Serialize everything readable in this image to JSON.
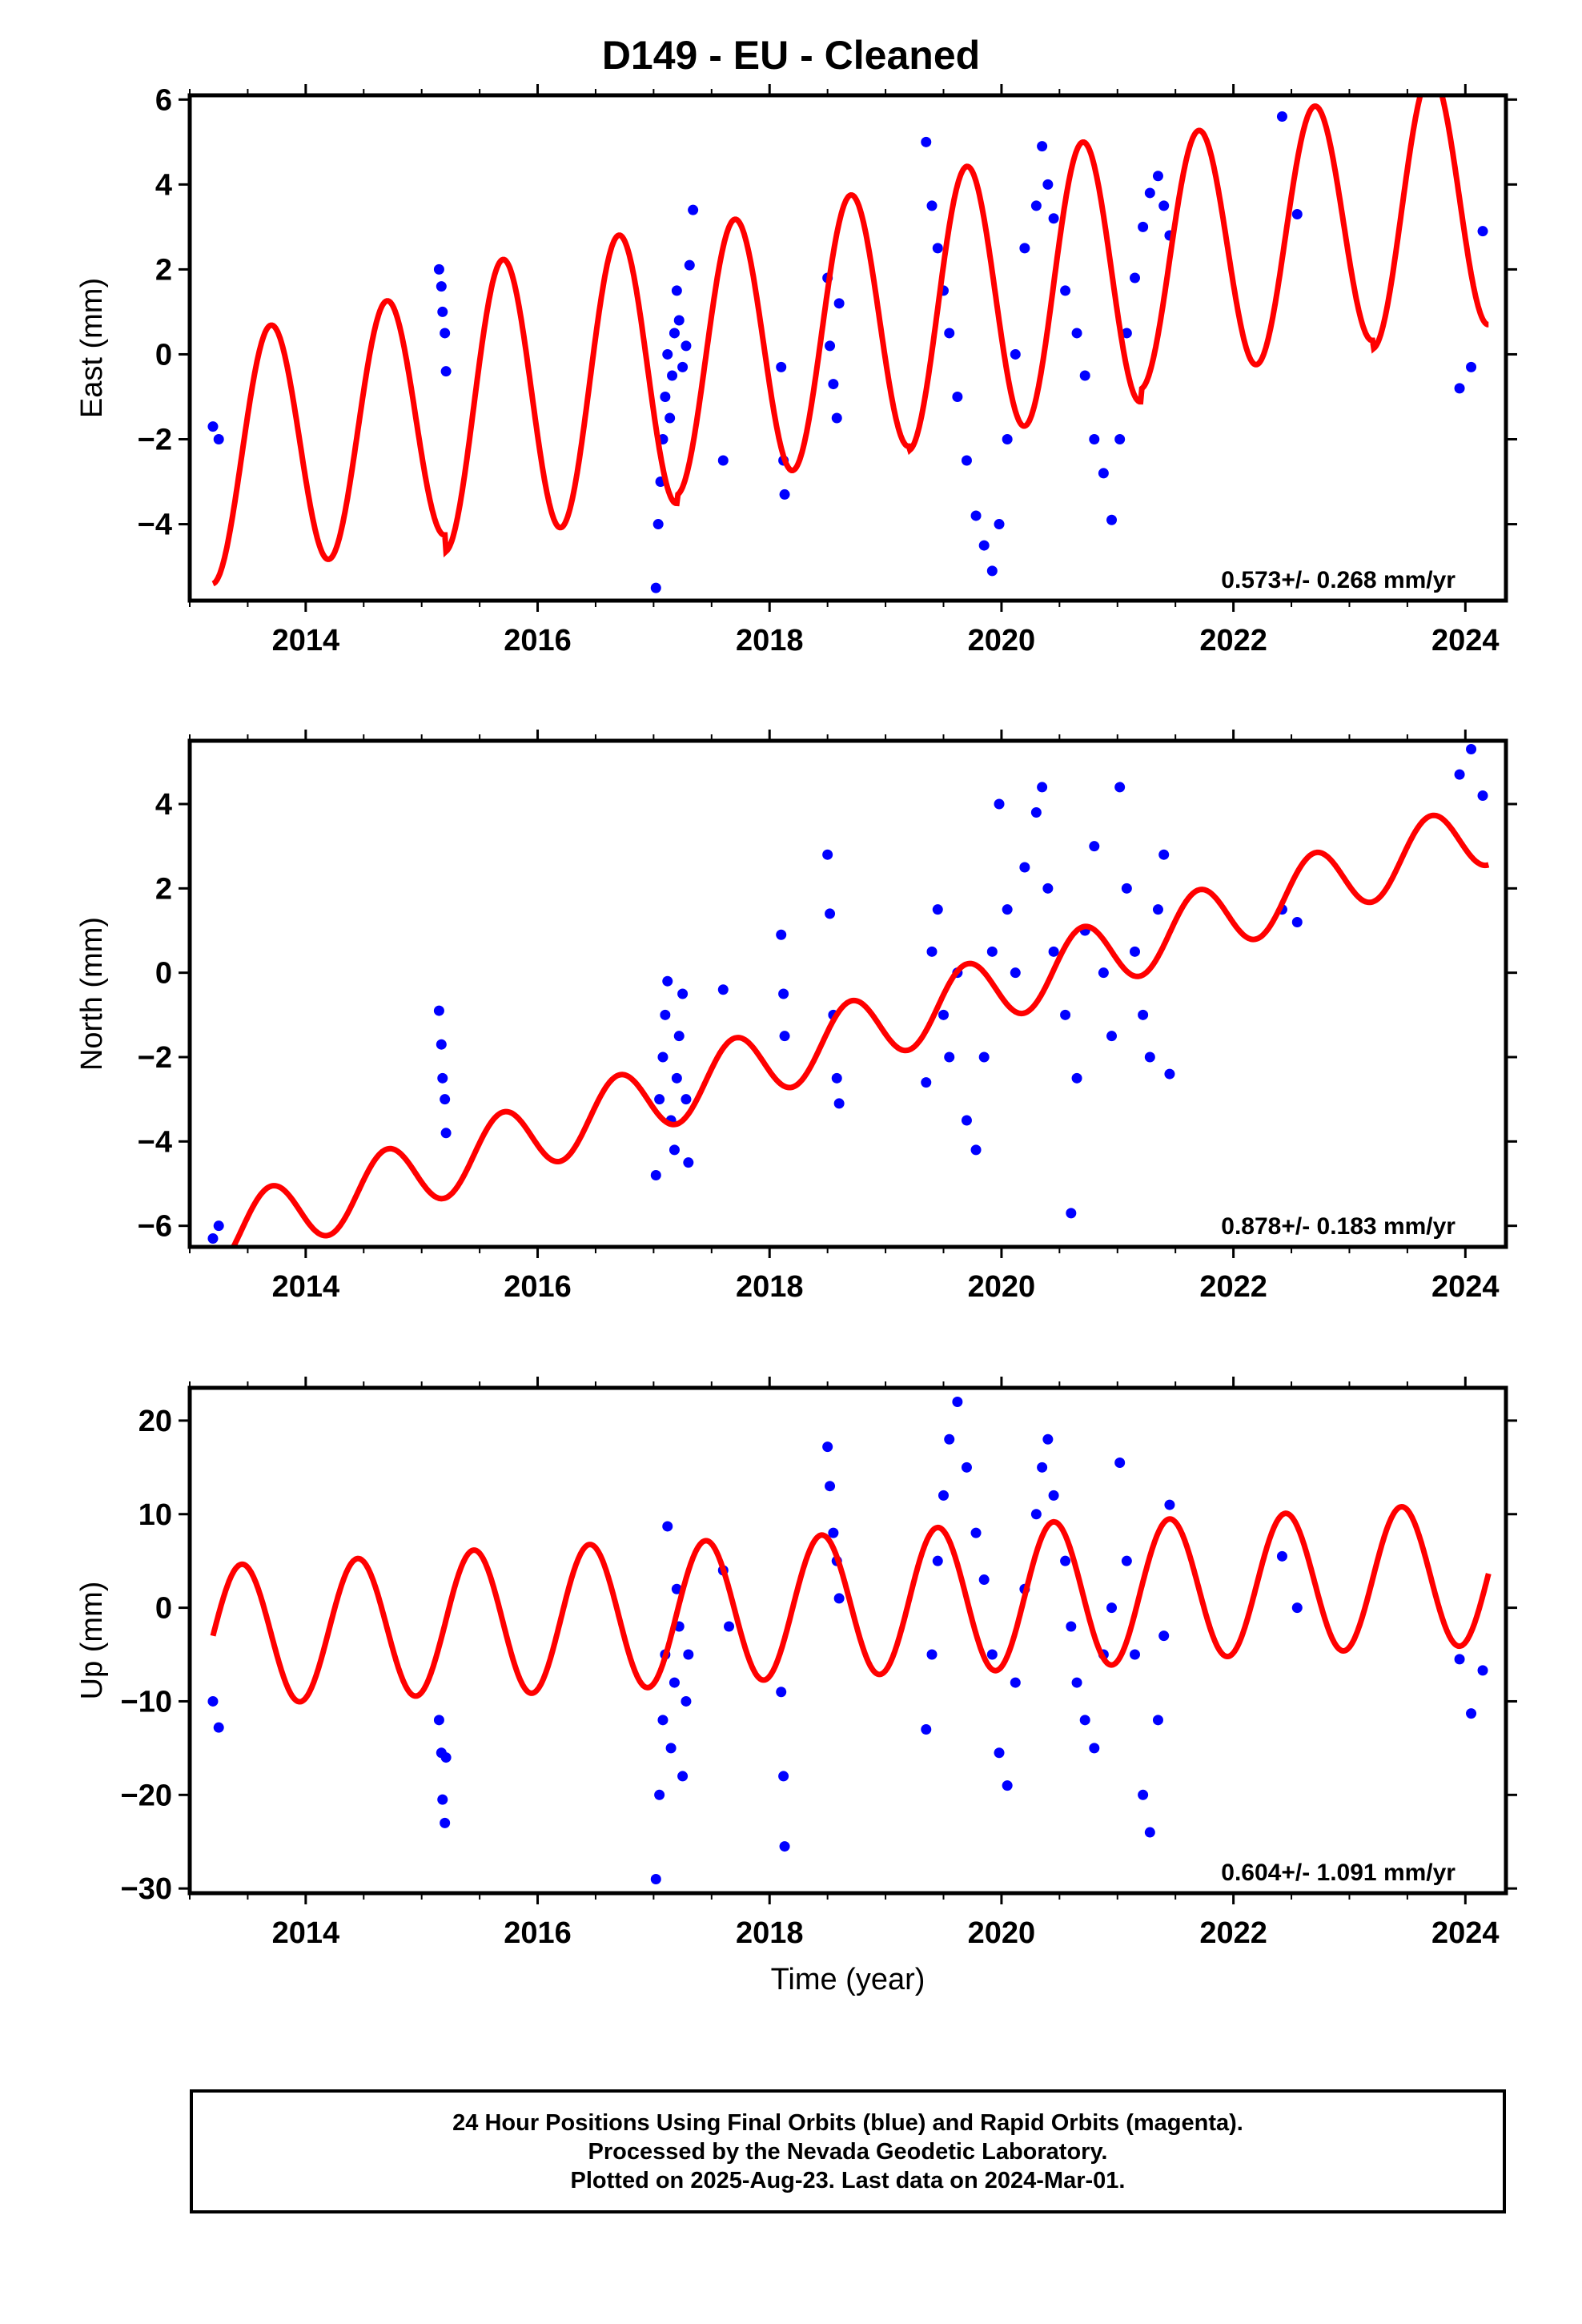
{
  "title": "D149  - EU - Cleaned",
  "caption": [
    "24 Hour Positions Using Final Orbits (blue) and Rapid Orbits (magenta).",
    "Processed by the Nevada Geodetic Laboratory.",
    "Plotted on 2025-Aug-23. Last data on 2024-Mar-01."
  ],
  "colors": {
    "final_orbits": "#0000ff",
    "model": "#ff0000",
    "axes": "#000000"
  },
  "chart_data": [
    {
      "type": "scatter",
      "ylabel": "East (mm)",
      "xlabel": "",
      "xlim": [
        2013.0,
        2024.35
      ],
      "ylim": [
        -5.8,
        6.1
      ],
      "xticks": [
        2014,
        2016,
        2018,
        2020,
        2022,
        2024
      ],
      "yticks": [
        -4,
        -2,
        0,
        2,
        4,
        6
      ],
      "ytick_labels": [
        "−4",
        "−2",
        "0",
        "2",
        "4",
        "6"
      ],
      "rate_label": "0.573+/- 0.268 mm/yr",
      "series": [
        {
          "kind": "points",
          "color": "#0000ff",
          "x": [
            2013.2,
            2013.25,
            2015.15,
            2015.17,
            2015.18,
            2015.2,
            2015.21,
            2017.02,
            2017.04,
            2017.06,
            2017.08,
            2017.1,
            2017.12,
            2017.14,
            2017.16,
            2017.18,
            2017.2,
            2017.22,
            2017.25,
            2017.28,
            2017.31,
            2017.34,
            2017.6,
            2018.1,
            2018.12,
            2018.13,
            2018.5,
            2018.52,
            2018.55,
            2018.58,
            2018.6,
            2019.35,
            2019.4,
            2019.45,
            2019.5,
            2019.55,
            2019.62,
            2019.7,
            2019.78,
            2019.85,
            2019.92,
            2019.98,
            2020.05,
            2020.12,
            2020.2,
            2020.3,
            2020.35,
            2020.4,
            2020.45,
            2020.55,
            2020.65,
            2020.72,
            2020.8,
            2020.88,
            2020.95,
            2021.02,
            2021.08,
            2021.15,
            2021.22,
            2021.28,
            2021.35,
            2021.4,
            2021.45,
            2022.42,
            2022.55,
            2023.95,
            2024.05,
            2024.15
          ],
          "y": [
            -1.7,
            -2.0,
            2.0,
            1.6,
            1.0,
            0.5,
            -0.4,
            -5.5,
            -4.0,
            -3.0,
            -2.0,
            -1.0,
            0.0,
            -1.5,
            -0.5,
            0.5,
            1.5,
            0.8,
            -0.3,
            0.2,
            2.1,
            3.4,
            -2.5,
            -0.3,
            -2.5,
            -3.3,
            1.8,
            0.2,
            -0.7,
            -1.5,
            1.2,
            5.0,
            3.5,
            2.5,
            1.5,
            0.5,
            -1.0,
            -2.5,
            -3.8,
            -4.5,
            -5.1,
            -4.0,
            -2.0,
            0.0,
            2.5,
            3.5,
            4.9,
            4.0,
            3.2,
            1.5,
            0.5,
            -0.5,
            -2.0,
            -2.8,
            -3.9,
            -2.0,
            0.5,
            1.8,
            3.0,
            3.8,
            4.2,
            3.5,
            2.8,
            5.6,
            3.3,
            -0.8,
            -0.3,
            2.9
          ]
        },
        {
          "kind": "line",
          "color": "#ff0000",
          "model": {
            "t0": 2013.2,
            "offset": -2.5,
            "rate": 0.573,
            "amp": [
              2.9,
              3.3,
              3.1,
              3.2,
              2.9,
              3.1
            ],
            "phase_year": 2013.45
          }
        }
      ]
    },
    {
      "type": "scatter",
      "ylabel": "North (mm)",
      "xlabel": "",
      "xlim": [
        2013.0,
        2024.35
      ],
      "ylim": [
        -6.5,
        5.5
      ],
      "xticks": [
        2014,
        2016,
        2018,
        2020,
        2022,
        2024
      ],
      "yticks": [
        -6,
        -4,
        -2,
        0,
        2,
        4
      ],
      "ytick_labels": [
        "−6",
        "−4",
        "−2",
        "0",
        "2",
        "4"
      ],
      "rate_label": "0.878+/- 0.183 mm/yr",
      "series": [
        {
          "kind": "points",
          "color": "#0000ff",
          "x": [
            2013.2,
            2013.25,
            2015.15,
            2015.17,
            2015.18,
            2015.2,
            2015.21,
            2017.02,
            2017.05,
            2017.08,
            2017.1,
            2017.12,
            2017.15,
            2017.18,
            2017.2,
            2017.22,
            2017.25,
            2017.28,
            2017.3,
            2017.6,
            2018.1,
            2018.12,
            2018.13,
            2018.5,
            2018.52,
            2018.55,
            2018.58,
            2018.6,
            2019.35,
            2019.4,
            2019.45,
            2019.5,
            2019.55,
            2019.62,
            2019.7,
            2019.78,
            2019.85,
            2019.92,
            2019.98,
            2020.05,
            2020.12,
            2020.2,
            2020.3,
            2020.35,
            2020.4,
            2020.45,
            2020.55,
            2020.6,
            2020.65,
            2020.72,
            2020.8,
            2020.88,
            2020.95,
            2021.02,
            2021.08,
            2021.15,
            2021.22,
            2021.28,
            2021.35,
            2021.4,
            2021.45,
            2022.42,
            2022.55,
            2023.95,
            2024.05,
            2024.15
          ],
          "y": [
            -6.3,
            -6.0,
            -0.9,
            -1.7,
            -2.5,
            -3.0,
            -3.8,
            -4.8,
            -3.0,
            -2.0,
            -1.0,
            -0.2,
            -3.5,
            -4.2,
            -2.5,
            -1.5,
            -0.5,
            -3.0,
            -4.5,
            -0.4,
            0.9,
            -0.5,
            -1.5,
            2.8,
            1.4,
            -1.0,
            -2.5,
            -3.1,
            -2.6,
            0.5,
            1.5,
            -1.0,
            -2.0,
            0.0,
            -3.5,
            -4.2,
            -2.0,
            0.5,
            4.0,
            1.5,
            0.0,
            2.5,
            3.8,
            4.4,
            2.0,
            0.5,
            -1.0,
            -5.7,
            -2.5,
            1.0,
            3.0,
            0.0,
            -1.5,
            4.4,
            2.0,
            0.5,
            -1.0,
            -2.0,
            1.5,
            2.8,
            -2.4,
            1.5,
            1.2,
            4.7,
            5.3,
            4.2
          ]
        },
        {
          "kind": "line",
          "color": "#ff0000",
          "model": {
            "t0": 2013.2,
            "offset": -6.3,
            "rate": 0.878,
            "amp": [
              0.8,
              0.8,
              0.8,
              0.8,
              0.8,
              0.8
            ],
            "phase_year": 2013.45
          }
        }
      ]
    },
    {
      "type": "scatter",
      "ylabel": "Up (mm)",
      "xlabel": "Time (year)",
      "xlim": [
        2013.0,
        2024.35
      ],
      "ylim": [
        -30.5,
        23.5
      ],
      "xticks": [
        2014,
        2016,
        2018,
        2020,
        2022,
        2024
      ],
      "yticks": [
        -30,
        -20,
        -10,
        0,
        10,
        20
      ],
      "ytick_labels": [
        "−30",
        "−20",
        "−10",
        "0",
        "10",
        "20"
      ],
      "rate_label": "0.604+/- 1.091 mm/yr",
      "series": [
        {
          "kind": "points",
          "color": "#0000ff",
          "x": [
            2013.2,
            2013.25,
            2015.15,
            2015.17,
            2015.18,
            2015.2,
            2015.21,
            2017.02,
            2017.05,
            2017.08,
            2017.1,
            2017.12,
            2017.15,
            2017.18,
            2017.2,
            2017.22,
            2017.25,
            2017.28,
            2017.3,
            2017.6,
            2017.65,
            2018.1,
            2018.12,
            2018.13,
            2018.5,
            2018.52,
            2018.55,
            2018.58,
            2018.6,
            2019.35,
            2019.4,
            2019.45,
            2019.5,
            2019.55,
            2019.62,
            2019.7,
            2019.78,
            2019.85,
            2019.92,
            2019.98,
            2020.05,
            2020.12,
            2020.2,
            2020.3,
            2020.35,
            2020.4,
            2020.45,
            2020.55,
            2020.6,
            2020.65,
            2020.72,
            2020.8,
            2020.88,
            2020.95,
            2021.02,
            2021.08,
            2021.15,
            2021.22,
            2021.28,
            2021.35,
            2021.4,
            2021.45,
            2022.42,
            2022.55,
            2023.95,
            2024.05,
            2024.15
          ],
          "y": [
            -10.0,
            -12.8,
            -12.0,
            -15.5,
            -20.5,
            -23.0,
            -16.0,
            -29.0,
            -20.0,
            -12.0,
            -5.0,
            8.7,
            -15.0,
            -8.0,
            2.0,
            -2.0,
            -18.0,
            -10.0,
            -5.0,
            4.0,
            -2.0,
            -9.0,
            -18.0,
            -25.5,
            17.2,
            13.0,
            8.0,
            5.0,
            1.0,
            -13.0,
            -5.0,
            5.0,
            12.0,
            18.0,
            22.0,
            15.0,
            8.0,
            3.0,
            -5.0,
            -15.5,
            -19.0,
            -8.0,
            2.0,
            10.0,
            15.0,
            18.0,
            12.0,
            5.0,
            -2.0,
            -8.0,
            -12.0,
            -15.0,
            -5.0,
            0.0,
            15.5,
            5.0,
            -5.0,
            -20.0,
            -24.0,
            -12.0,
            -3.0,
            11.0,
            5.5,
            0.0,
            -5.5,
            -11.3,
            -6.7
          ]
        },
        {
          "kind": "line",
          "color": "#ff0000",
          "model": {
            "t0": 2013.2,
            "offset": -3.0,
            "rate": 0.604,
            "amp": [
              7.5,
              7.8,
              7.6,
              7.8,
              7.5,
              7.6
            ],
            "phase_year": 2013.2
          }
        }
      ]
    }
  ]
}
